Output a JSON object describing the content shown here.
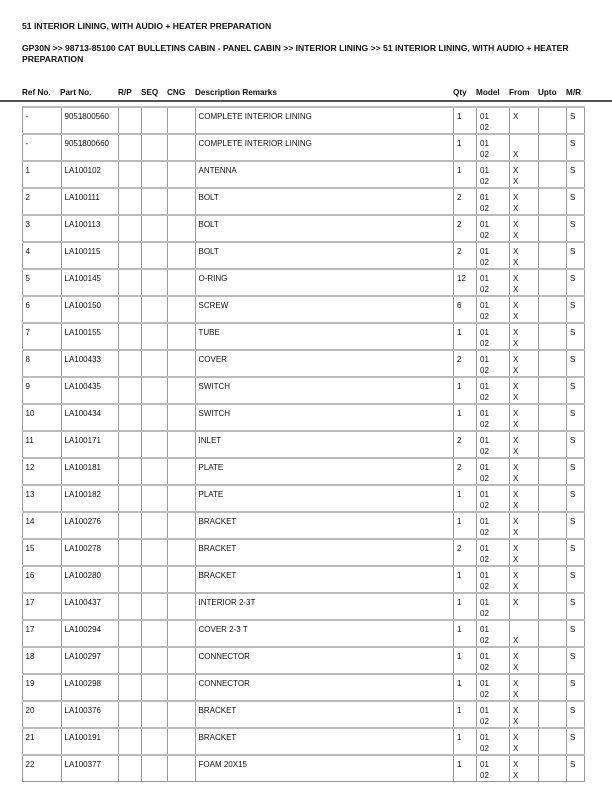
{
  "title": "51 INTERIOR LINING, WITH AUDIO + HEATER PREPARATION",
  "breadcrumb": "GP30N >> 98713-85100 CAT BULLETINS CABIN - PANEL CABIN >> INTERIOR LINING >> 51 INTERIOR LINING, WITH AUDIO + HEATER PREPARATION",
  "columns": [
    "Ref No.",
    "Part No.",
    "R/P",
    "SEQ",
    "CNG",
    "Description Remarks",
    "Qty",
    "Model",
    "From",
    "Upto",
    "M/R"
  ],
  "rows": [
    {
      "ref": "-",
      "part": "9051800560",
      "desc": "COMPLETE INTERIOR LINING",
      "qty": "1",
      "model": [
        "01",
        "02"
      ],
      "from": [
        "X",
        ""
      ],
      "mr": "S"
    },
    {
      "ref": "-",
      "part": "9051800660",
      "desc": "COMPLETE INTERIOR LINING",
      "qty": "1",
      "model": [
        "01",
        "02"
      ],
      "from": [
        "",
        "X"
      ],
      "mr": "S"
    },
    {
      "ref": "1",
      "part": "LA100102",
      "desc": "ANTENNA",
      "qty": "1",
      "model": [
        "01",
        "02"
      ],
      "from": [
        "X",
        "X"
      ],
      "mr": "S"
    },
    {
      "ref": "2",
      "part": "LA100111",
      "desc": "BOLT",
      "qty": "2",
      "model": [
        "01",
        "02"
      ],
      "from": [
        "X",
        "X"
      ],
      "mr": "S"
    },
    {
      "ref": "3",
      "part": "LA100113",
      "desc": "BOLT",
      "qty": "2",
      "model": [
        "01",
        "02"
      ],
      "from": [
        "X",
        "X"
      ],
      "mr": "S"
    },
    {
      "ref": "4",
      "part": "LA100115",
      "desc": "BOLT",
      "qty": "2",
      "model": [
        "01",
        "02"
      ],
      "from": [
        "X",
        "X"
      ],
      "mr": "S"
    },
    {
      "ref": "5",
      "part": "LA100145",
      "desc": "O-RING",
      "qty": "12",
      "model": [
        "01",
        "02"
      ],
      "from": [
        "X",
        "X"
      ],
      "mr": "S"
    },
    {
      "ref": "6",
      "part": "LA100150",
      "desc": "SCREW",
      "qty": "6",
      "model": [
        "01",
        "02"
      ],
      "from": [
        "X",
        "X"
      ],
      "mr": "S"
    },
    {
      "ref": "7",
      "part": "LA100155",
      "desc": "TUBE",
      "qty": "1",
      "model": [
        "01",
        "02"
      ],
      "from": [
        "X",
        "X"
      ],
      "mr": "S"
    },
    {
      "ref": "8",
      "part": "LA100433",
      "desc": "COVER",
      "qty": "2",
      "model": [
        "01",
        "02"
      ],
      "from": [
        "X",
        "X"
      ],
      "mr": "S"
    },
    {
      "ref": "9",
      "part": "LA100435",
      "desc": "SWITCH",
      "qty": "1",
      "model": [
        "01",
        "02"
      ],
      "from": [
        "X",
        "X"
      ],
      "mr": "S"
    },
    {
      "ref": "10",
      "part": "LA100434",
      "desc": "SWITCH",
      "qty": "1",
      "model": [
        "01",
        "02"
      ],
      "from": [
        "X",
        "X"
      ],
      "mr": "S"
    },
    {
      "ref": "11",
      "part": "LA100171",
      "desc": "INLET",
      "qty": "2",
      "model": [
        "01",
        "02"
      ],
      "from": [
        "X",
        "X"
      ],
      "mr": "S"
    },
    {
      "ref": "12",
      "part": "LA100181",
      "desc": "PLATE",
      "qty": "2",
      "model": [
        "01",
        "02"
      ],
      "from": [
        "X",
        "X"
      ],
      "mr": "S"
    },
    {
      "ref": "13",
      "part": "LA100182",
      "desc": "PLATE",
      "qty": "1",
      "model": [
        "01",
        "02"
      ],
      "from": [
        "X",
        "X"
      ],
      "mr": "S"
    },
    {
      "ref": "14",
      "part": "LA100276",
      "desc": "BRACKET",
      "qty": "1",
      "model": [
        "01",
        "02"
      ],
      "from": [
        "X",
        "X"
      ],
      "mr": "S"
    },
    {
      "ref": "15",
      "part": "LA100278",
      "desc": "BRACKET",
      "qty": "2",
      "model": [
        "01",
        "02"
      ],
      "from": [
        "X",
        "X"
      ],
      "mr": "S"
    },
    {
      "ref": "16",
      "part": "LA100280",
      "desc": "BRACKET",
      "qty": "1",
      "model": [
        "01",
        "02"
      ],
      "from": [
        "X",
        "X"
      ],
      "mr": "S"
    },
    {
      "ref": "17",
      "part": "LA100437",
      "desc": "INTERIOR 2-3T",
      "qty": "1",
      "model": [
        "01",
        "02"
      ],
      "from": [
        "X",
        ""
      ],
      "mr": "S"
    },
    {
      "ref": "17",
      "part": "LA100294",
      "desc": "COVER 2-3 T",
      "qty": "1",
      "model": [
        "01",
        "02"
      ],
      "from": [
        "",
        "X"
      ],
      "mr": "S"
    },
    {
      "ref": "18",
      "part": "LA100297",
      "desc": "CONNECTOR",
      "qty": "1",
      "model": [
        "01",
        "02"
      ],
      "from": [
        "X",
        "X"
      ],
      "mr": "S"
    },
    {
      "ref": "19",
      "part": "LA100298",
      "desc": "CONNECTOR",
      "qty": "1",
      "model": [
        "01",
        "02"
      ],
      "from": [
        "X",
        "X"
      ],
      "mr": "S"
    },
    {
      "ref": "20",
      "part": "LA100376",
      "desc": "BRACKET",
      "qty": "1",
      "model": [
        "01",
        "02"
      ],
      "from": [
        "X",
        "X"
      ],
      "mr": "S"
    },
    {
      "ref": "21",
      "part": "LA100191",
      "desc": "BRACKET",
      "qty": "1",
      "model": [
        "01",
        "02"
      ],
      "from": [
        "X",
        "X"
      ],
      "mr": "S"
    },
    {
      "ref": "22",
      "part": "LA100377",
      "desc": "FOAM 20X15",
      "qty": "1",
      "model": [
        "01",
        "02"
      ],
      "from": [
        "X",
        "X"
      ],
      "mr": "S"
    }
  ]
}
